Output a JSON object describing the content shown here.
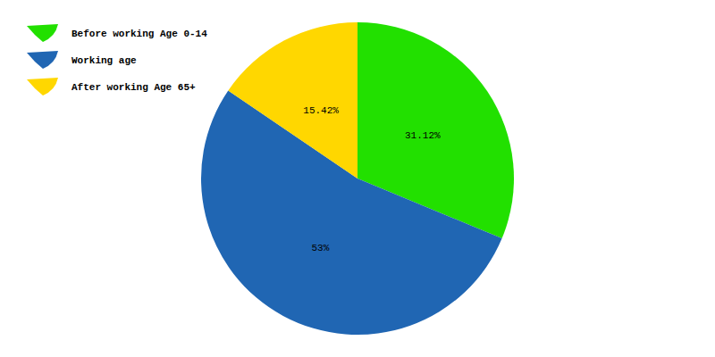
{
  "chart_data": {
    "type": "pie",
    "categories": [
      "Before working Age 0-14",
      "Working age",
      "After working Age 65+"
    ],
    "values": [
      31.12,
      53,
      15.42
    ],
    "value_labels": [
      "31.12%",
      "53%",
      "15.42%"
    ],
    "colors": [
      "#22e000",
      "#2066b3",
      "#ffd700"
    ],
    "legend": "top-left",
    "data_labels": true
  }
}
